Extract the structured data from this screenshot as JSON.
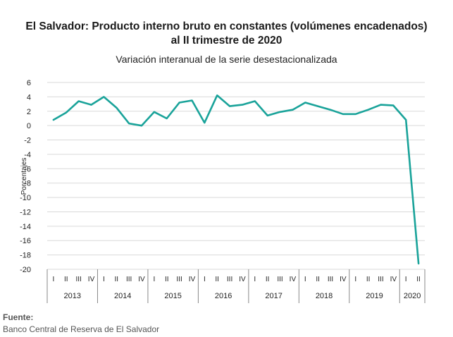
{
  "chart_data": {
    "type": "line",
    "title_lines": [
      "El Salvador: Producto interno bruto en constantes (volúmenes encadenados)",
      "al II trimestre de 2020"
    ],
    "subtitle": "Variación interanual de la serie desestacionalizada",
    "ylabel": "Porcentajes",
    "ylim": [
      -20,
      6
    ],
    "yticks": [
      6,
      4,
      2,
      0,
      -2,
      -4,
      -6,
      -8,
      -10,
      -12,
      -14,
      -16,
      -18,
      -20
    ],
    "grid": true,
    "quarter_labels": [
      "I",
      "II",
      "III",
      "IV"
    ],
    "years": [
      "2013",
      "2014",
      "2015",
      "2016",
      "2017",
      "2018",
      "2019",
      "2020"
    ],
    "series": [
      {
        "color": "#1aa39a",
        "values": [
          0.8,
          1.8,
          3.4,
          2.9,
          4.0,
          2.5,
          0.3,
          0.0,
          1.9,
          1.0,
          3.2,
          3.5,
          0.4,
          4.2,
          2.7,
          2.9,
          3.4,
          1.4,
          1.9,
          2.2,
          3.2,
          2.7,
          2.2,
          1.6,
          1.6,
          2.2,
          2.9,
          2.8,
          0.8,
          -19.2
        ]
      }
    ]
  },
  "footer": {
    "source_label": "Fuente:",
    "source_value": "Banco Central de Reserva de El Salvador"
  }
}
